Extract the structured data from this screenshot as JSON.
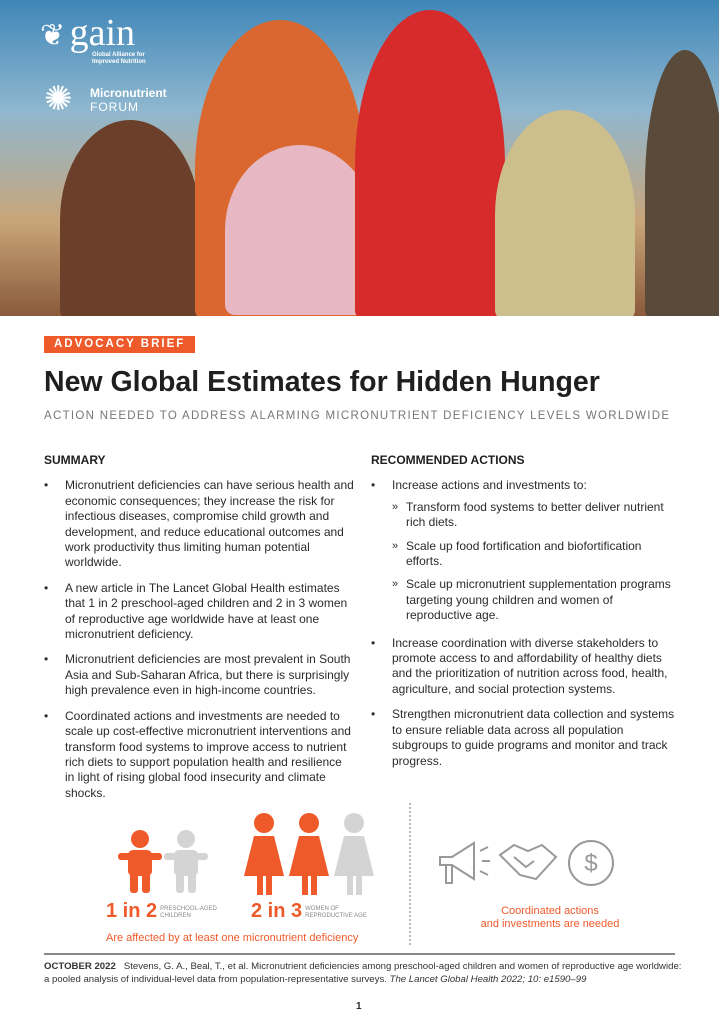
{
  "logos": {
    "gain_name": "gain",
    "gain_tagline_1": "Global Alliance for",
    "gain_tagline_2": "Improved Nutrition",
    "forum_1": "Micronutrient",
    "forum_2": "FORUM"
  },
  "badge": "ADVOCACY BRIEF",
  "title": "New Global Estimates for Hidden Hunger",
  "subtitle": "ACTION NEEDED TO ADDRESS ALARMING MICRONUTRIENT DEFICIENCY LEVELS WORLDWIDE",
  "summary": {
    "heading": "SUMMARY",
    "items": [
      "Micronutrient deficiencies can have serious health and economic consequences; they increase the risk for infectious diseases, compromise child growth and development, and reduce educational outcomes and work productivity thus limiting human potential worldwide.",
      "A new article in The Lancet Global Health estimates that 1 in 2 preschool-aged children and 2 in 3 women of reproductive age worldwide have at least one micronutrient deficiency.",
      "Micronutrient deficiencies are most prevalent in South Asia and Sub-Saharan Africa, but there is surprisingly high prevalence even in high-income countries.",
      "Coordinated actions and investments are needed to scale up cost-effective micronutrient interventions and transform food systems to improve access to nutrient rich diets to support population health and resilience in light of rising global food insecurity and climate shocks."
    ]
  },
  "actions": {
    "heading": "RECOMMENDED ACTIONS",
    "intro": "Increase actions and investments to:",
    "sub": [
      "Transform food systems to better deliver nutrient rich diets.",
      "Scale up food fortification and biofortification efforts.",
      "Scale up micronutrient supplementation programs targeting young children and women of reproductive age."
    ],
    "items": [
      "Increase coordination with diverse stakeholders to promote access to and affordability of healthy diets and the prioritization of nutrition across food, health, agriculture, and social protection systems.",
      "Strengthen micronutrient data collection and systems to ensure reliable data across all population subgroups to guide programs and monitor and track progress."
    ]
  },
  "infographic": {
    "children_stat": "1 in 2",
    "children_label_1": "PRESCHOOL-AGED",
    "children_label_2": "CHILDREN",
    "women_stat": "2 in 3",
    "women_label_1": "WOMEN OF",
    "women_label_2": "REPRODUCTIVE AGE",
    "affected": "Are affected by at least one micronutrient deficiency",
    "coord_1": "Coordinated actions",
    "coord_2": "and investments are needed",
    "accent": "#ef5a2b",
    "inactive": "#d4d4d4"
  },
  "footer": {
    "date": "OCTOBER 2022",
    "citation": "Stevens, G. A., Beal, T., et al. Micronutrient deficiencies among preschool-aged children and women of reproductive age worldwide: a pooled analysis of individual-level data from population-representative surveys.",
    "journal": "The Lancet Global Health 2022; 10: e1590–99"
  },
  "page_number": "1"
}
